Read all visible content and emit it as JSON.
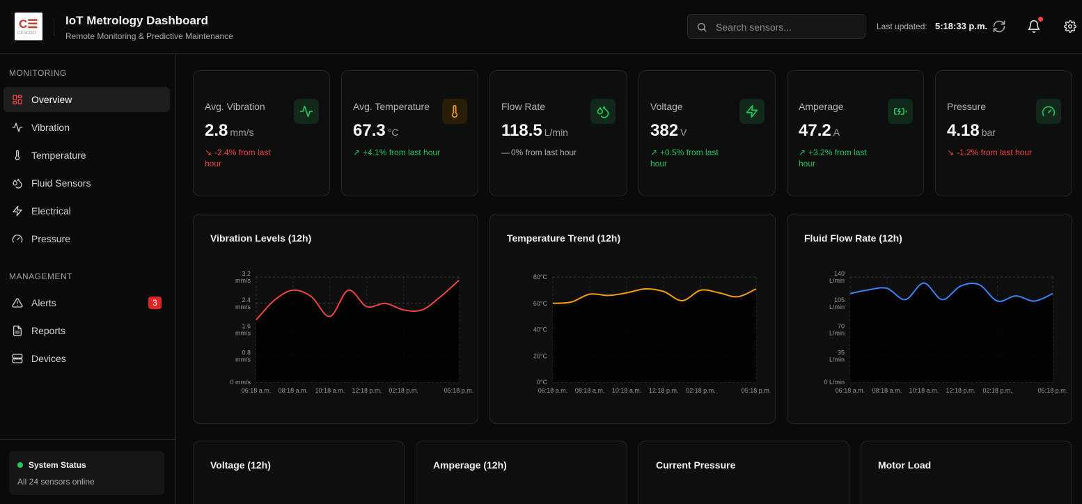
{
  "header": {
    "logo_text": "C☰",
    "logo_subtext": "CENCOO",
    "title": "IoT Metrology Dashboard",
    "subtitle": "Remote Monitoring & Predictive Maintenance",
    "search_placeholder": "Search sensors...",
    "last_updated_label": "Last updated:",
    "last_updated_time": "5:18:33 p.m.",
    "icons": [
      "search-icon",
      "refresh-icon",
      "bell-icon",
      "gear-icon"
    ]
  },
  "sidebar": {
    "monitoring_label": "MONITORING",
    "monitoring_items": [
      {
        "label": "Overview",
        "icon": "grid-icon",
        "active": true
      },
      {
        "label": "Vibration",
        "icon": "activity-icon"
      },
      {
        "label": "Temperature",
        "icon": "thermometer-icon"
      },
      {
        "label": "Fluid Sensors",
        "icon": "droplets-icon"
      },
      {
        "label": "Electrical",
        "icon": "zap-icon"
      },
      {
        "label": "Pressure",
        "icon": "gauge-icon"
      }
    ],
    "management_label": "MANAGEMENT",
    "management_items": [
      {
        "label": "Alerts",
        "icon": "alert-triangle-icon",
        "badge": "3"
      },
      {
        "label": "Reports",
        "icon": "file-text-icon"
      },
      {
        "label": "Devices",
        "icon": "server-icon"
      }
    ],
    "status_title": "System Status",
    "status_text": "All 24 sensors online"
  },
  "stats": [
    {
      "title": "Avg. Vibration",
      "value": "2.8",
      "unit": "mm/s",
      "trend_dir": "down",
      "trend": "-2.4% from last hour",
      "icon": "activity-icon",
      "accent": "#22c55e"
    },
    {
      "title": "Avg. Temperature",
      "value": "67.3",
      "unit": "°C",
      "trend_dir": "up",
      "trend": "+4.1% from last hour",
      "icon": "thermometer-icon",
      "accent": "#f59e0b"
    },
    {
      "title": "Flow Rate",
      "value": "118.5",
      "unit": "L/min",
      "trend_dir": "flat",
      "trend": "0% from last hour",
      "icon": "droplets-icon",
      "accent": "#22c55e"
    },
    {
      "title": "Voltage",
      "value": "382",
      "unit": "V",
      "trend_dir": "up",
      "trend": "+0.5% from last hour",
      "icon": "zap-icon",
      "accent": "#22c55e"
    },
    {
      "title": "Amperage",
      "value": "47.2",
      "unit": "A",
      "trend_dir": "up",
      "trend": "+3.2% from last hour",
      "icon": "battery-charging-icon",
      "accent": "#22c55e"
    },
    {
      "title": "Pressure",
      "value": "4.18",
      "unit": "bar",
      "trend_dir": "down",
      "trend": "-1.2% from last hour",
      "icon": "gauge-icon",
      "accent": "#22c55e"
    }
  ],
  "chart_data": [
    {
      "type": "area",
      "title": "Vibration Levels (12h)",
      "color": "#ef4444",
      "ylim": [
        0,
        3.2
      ],
      "y_ticks": [
        {
          "v": 0,
          "lines": [
            "0 mm/s"
          ]
        },
        {
          "v": 0.8,
          "lines": [
            "0.8",
            "mm/s"
          ]
        },
        {
          "v": 1.6,
          "lines": [
            "1.6",
            "mm/s"
          ]
        },
        {
          "v": 2.4,
          "lines": [
            "2.4",
            "mm/s"
          ]
        },
        {
          "v": 3.2,
          "lines": [
            "3.2",
            "mm/s"
          ]
        }
      ],
      "x_ticks": [
        "06:18 a.m.",
        "08:18 a.m.",
        "10:18 a.m.",
        "12:18 p.m.",
        "02:18 p.m.",
        "05:18 p.m."
      ],
      "x_tick_pos": [
        0,
        2,
        4,
        6,
        8,
        11
      ],
      "x_count": 12,
      "values": [
        1.9,
        2.5,
        2.8,
        2.6,
        2.0,
        2.8,
        2.3,
        2.4,
        2.2,
        2.2,
        2.6,
        3.1
      ]
    },
    {
      "type": "area",
      "title": "Temperature Trend (12h)",
      "color": "#f59e0b",
      "ylim": [
        0,
        80
      ],
      "y_ticks": [
        {
          "v": 0,
          "lines": [
            "0°C"
          ]
        },
        {
          "v": 20,
          "lines": [
            "20°C"
          ]
        },
        {
          "v": 40,
          "lines": [
            "40°C"
          ]
        },
        {
          "v": 60,
          "lines": [
            "60°C"
          ]
        },
        {
          "v": 80,
          "lines": [
            "80°C"
          ]
        }
      ],
      "x_ticks": [
        "06:18 a.m.",
        "08:18 a.m.",
        "10:18 a.m.",
        "12:18 p.m.",
        "02:18 p.m.",
        "05:18 p.m."
      ],
      "x_tick_pos": [
        0,
        2,
        4,
        6,
        8,
        11
      ],
      "x_count": 12,
      "values": [
        60,
        61,
        67,
        66,
        68,
        71,
        69,
        62,
        70,
        68,
        65,
        71
      ]
    },
    {
      "type": "area",
      "title": "Fluid Flow Rate (12h)",
      "color": "#3b82f6",
      "ylim": [
        0,
        140
      ],
      "y_ticks": [
        {
          "v": 0,
          "lines": [
            "0 L/min"
          ]
        },
        {
          "v": 35,
          "lines": [
            "35",
            "L/min"
          ]
        },
        {
          "v": 70,
          "lines": [
            "70",
            "L/min"
          ]
        },
        {
          "v": 105,
          "lines": [
            "105",
            "L/min"
          ]
        },
        {
          "v": 140,
          "lines": [
            "140",
            "L/min"
          ]
        }
      ],
      "x_ticks": [
        "06:18 a.m.",
        "08:18 a.m.",
        "10:18 a.m.",
        "12:18 p.m.",
        "02:18 p.m.",
        "05:18 p.m."
      ],
      "x_tick_pos": [
        0,
        2,
        4,
        6,
        8,
        11
      ],
      "x_count": 12,
      "values": [
        118,
        123,
        125,
        110,
        132,
        110,
        128,
        130,
        108,
        115,
        108,
        118
      ]
    }
  ],
  "lower_cards": [
    {
      "title": "Voltage (12h)"
    },
    {
      "title": "Amperage (12h)"
    },
    {
      "title": "Current Pressure"
    },
    {
      "title": "Motor Load"
    }
  ]
}
